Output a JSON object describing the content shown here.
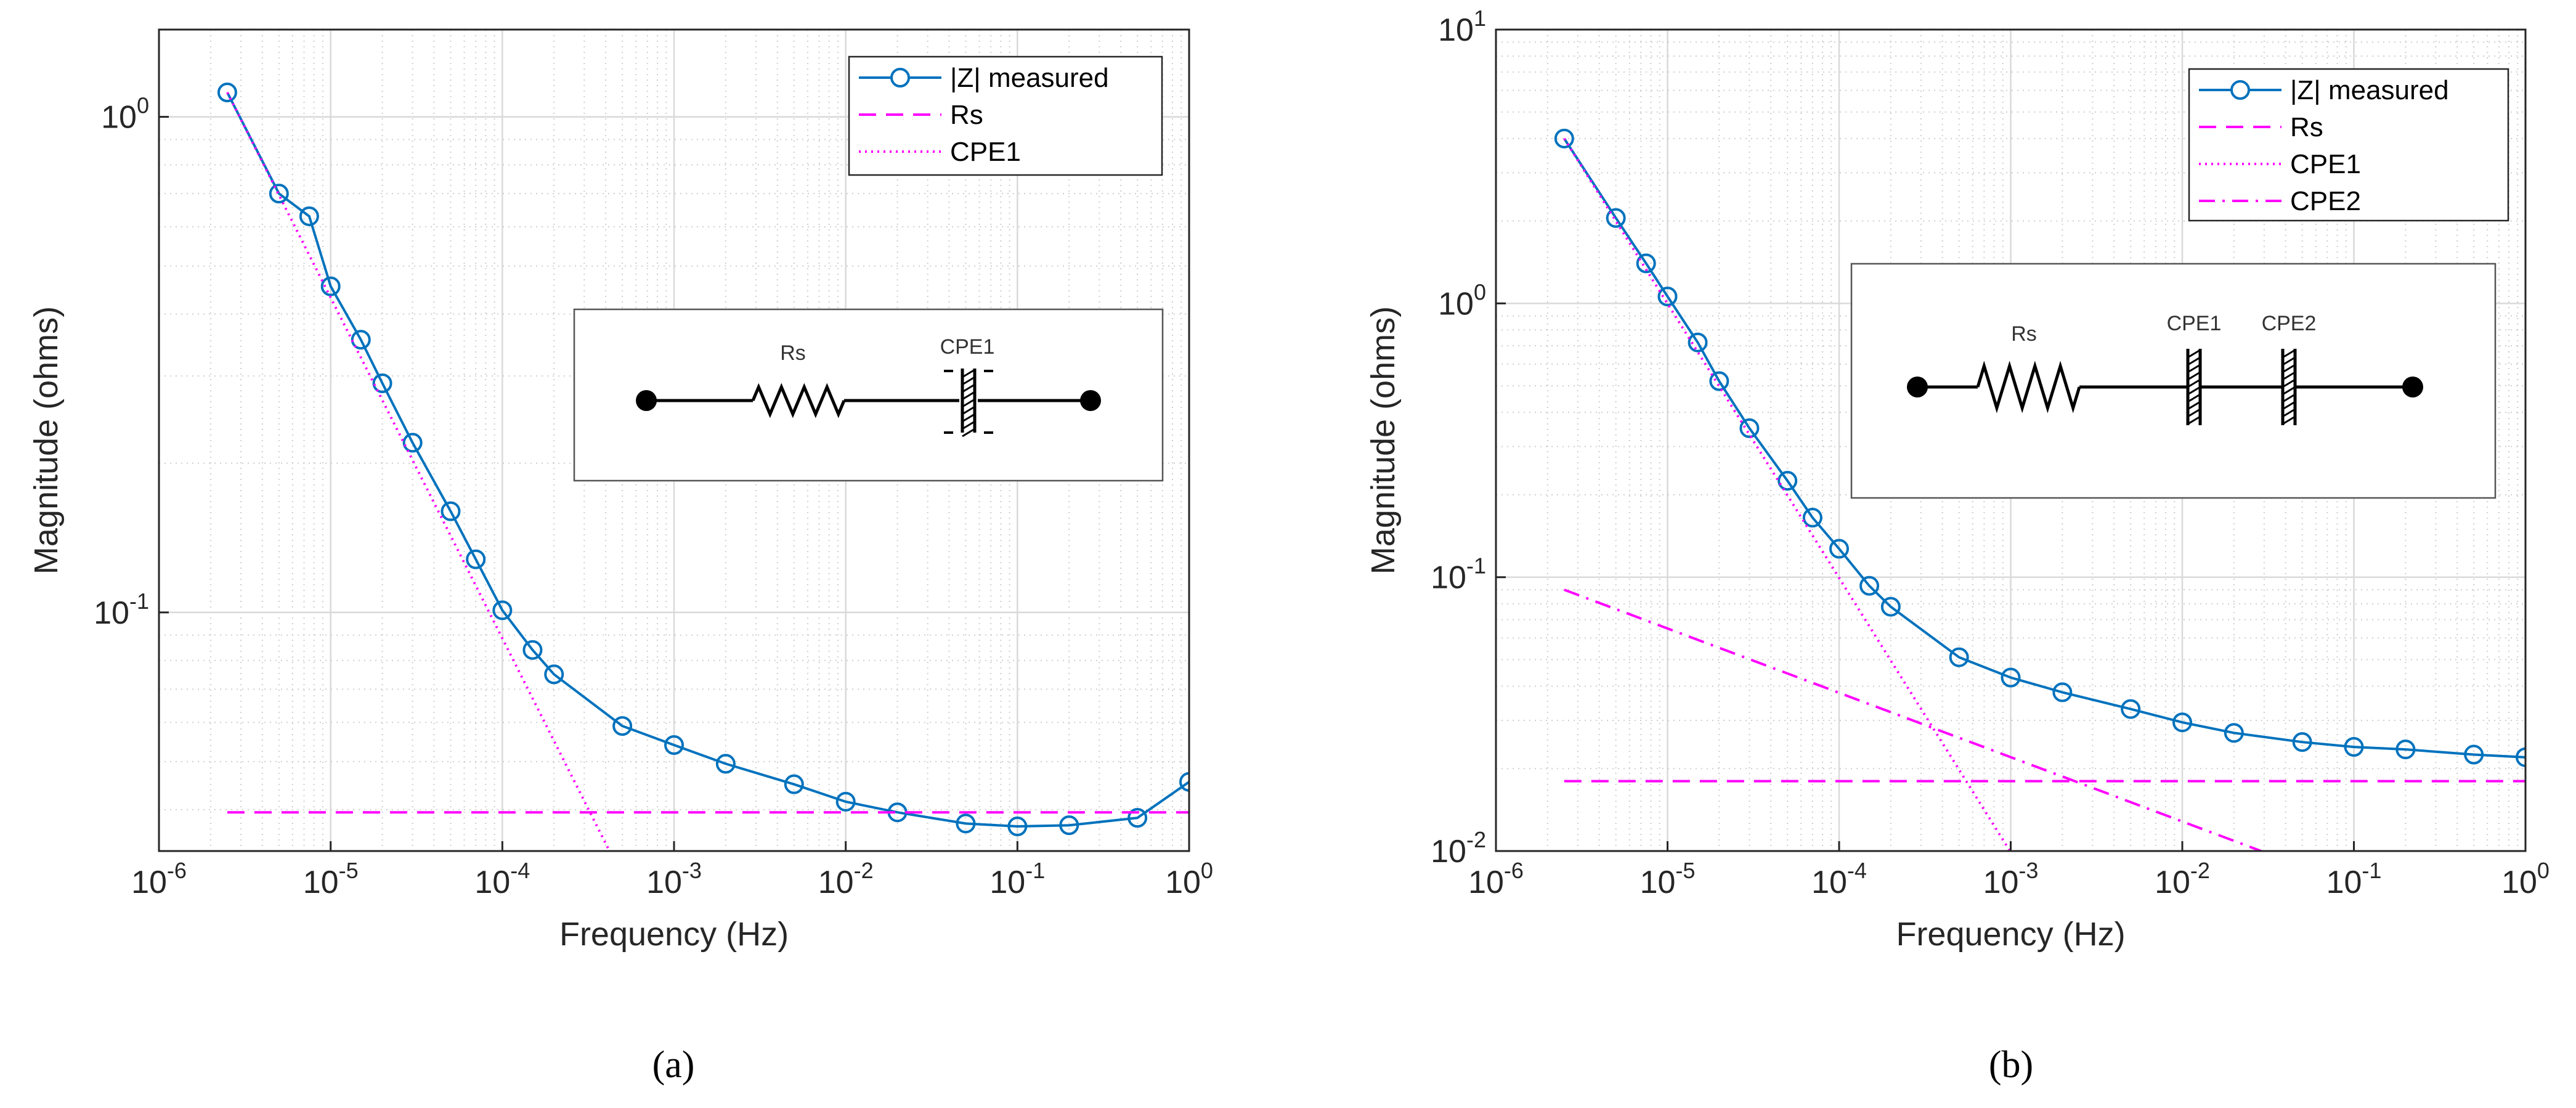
{
  "chart_data": [
    {
      "type": "line",
      "panel_label": "(a)",
      "xlabel": "Frequency (Hz)",
      "ylabel": "Magnitude (ohms)",
      "xscale": "log",
      "yscale": "log",
      "xlim": [
        1e-06,
        1
      ],
      "ylim": [
        0.033,
        1.5
      ],
      "grid": true,
      "legend_position": "top-right",
      "xticks": [
        {
          "base": "10",
          "exp": "-6"
        },
        {
          "base": "10",
          "exp": "-5"
        },
        {
          "base": "10",
          "exp": "-4"
        },
        {
          "base": "10",
          "exp": "-3"
        },
        {
          "base": "10",
          "exp": "-2"
        },
        {
          "base": "10",
          "exp": "-1"
        },
        {
          "base": "10",
          "exp": "0"
        }
      ],
      "yticks": [
        {
          "value": 0.1,
          "base": "10",
          "exp": "-1"
        },
        {
          "value": 1,
          "base": "10",
          "exp": "0"
        }
      ],
      "series": [
        {
          "name": "|Z| measured",
          "style": "solid-circle",
          "color": "#0072BD",
          "x": [
            2.5e-06,
            5e-06,
            7.5e-06,
            1e-05,
            1.5e-05,
            2e-05,
            3e-05,
            5e-05,
            7e-05,
            0.0001,
            0.00015,
            0.0002,
            0.0005,
            0.001,
            0.002,
            0.005,
            0.01,
            0.02,
            0.05,
            0.1,
            0.2,
            0.5,
            1
          ],
          "y": [
            1.12,
            0.7,
            0.63,
            0.455,
            0.355,
            0.29,
            0.22,
            0.16,
            0.128,
            0.101,
            0.084,
            0.075,
            0.059,
            0.054,
            0.0495,
            0.045,
            0.0415,
            0.0395,
            0.0375,
            0.037,
            0.0372,
            0.0385,
            0.0455
          ]
        },
        {
          "name": "Rs",
          "style": "dashed",
          "color": "#FF00FF",
          "x": [
            2.5e-06,
            1
          ],
          "y": [
            0.0395,
            0.0395
          ]
        },
        {
          "name": "CPE1",
          "style": "dotted",
          "color": "#FF00FF",
          "x": [
            2.5e-06,
            0.00045
          ],
          "y": [
            1.12,
            0.0315
          ]
        }
      ],
      "circuit": {
        "labels": [
          "Rs",
          "CPE1"
        ]
      }
    },
    {
      "type": "line",
      "panel_label": "(b)",
      "xlabel": "Frequency (Hz)",
      "ylabel": "Magnitude (ohms)",
      "xscale": "log",
      "yscale": "log",
      "xlim": [
        1e-06,
        1
      ],
      "ylim": [
        0.01,
        10
      ],
      "grid": true,
      "legend_position": "top-right",
      "xticks": [
        {
          "base": "10",
          "exp": "-6"
        },
        {
          "base": "10",
          "exp": "-5"
        },
        {
          "base": "10",
          "exp": "-4"
        },
        {
          "base": "10",
          "exp": "-3"
        },
        {
          "base": "10",
          "exp": "-2"
        },
        {
          "base": "10",
          "exp": "-1"
        },
        {
          "base": "10",
          "exp": "0"
        }
      ],
      "yticks": [
        {
          "value": 0.01,
          "base": "10",
          "exp": "-2"
        },
        {
          "value": 0.1,
          "base": "10",
          "exp": "-1"
        },
        {
          "value": 1,
          "base": "10",
          "exp": "0"
        },
        {
          "value": 10,
          "base": "10",
          "exp": "1"
        }
      ],
      "series": [
        {
          "name": "|Z| measured",
          "style": "solid-circle",
          "color": "#0072BD",
          "x": [
            2.5e-06,
            5e-06,
            7.5e-06,
            1e-05,
            1.5e-05,
            2e-05,
            3e-05,
            5e-05,
            7e-05,
            0.0001,
            0.00015,
            0.0002,
            0.0005,
            0.001,
            0.002,
            0.005,
            0.01,
            0.02,
            0.05,
            0.1,
            0.2,
            0.5,
            1
          ],
          "y": [
            4.0,
            2.05,
            1.4,
            1.06,
            0.72,
            0.52,
            0.35,
            0.225,
            0.165,
            0.127,
            0.093,
            0.078,
            0.051,
            0.043,
            0.038,
            0.033,
            0.0295,
            0.027,
            0.025,
            0.024,
            0.0235,
            0.0225,
            0.022
          ]
        },
        {
          "name": "Rs",
          "style": "dashed",
          "color": "#FF00FF",
          "x": [
            2.5e-06,
            1
          ],
          "y": [
            0.018,
            0.018
          ]
        },
        {
          "name": "CPE1",
          "style": "dotted",
          "color": "#FF00FF",
          "x": [
            2.5e-06,
            0.001
          ],
          "y": [
            4.0,
            0.0099
          ]
        },
        {
          "name": "CPE2",
          "style": "dashdot",
          "color": "#FF00FF",
          "x": [
            2.5e-06,
            0.03
          ],
          "y": [
            0.09,
            0.0099
          ]
        }
      ],
      "circuit": {
        "labels": [
          "Rs",
          "CPE1",
          "CPE2"
        ]
      }
    }
  ]
}
